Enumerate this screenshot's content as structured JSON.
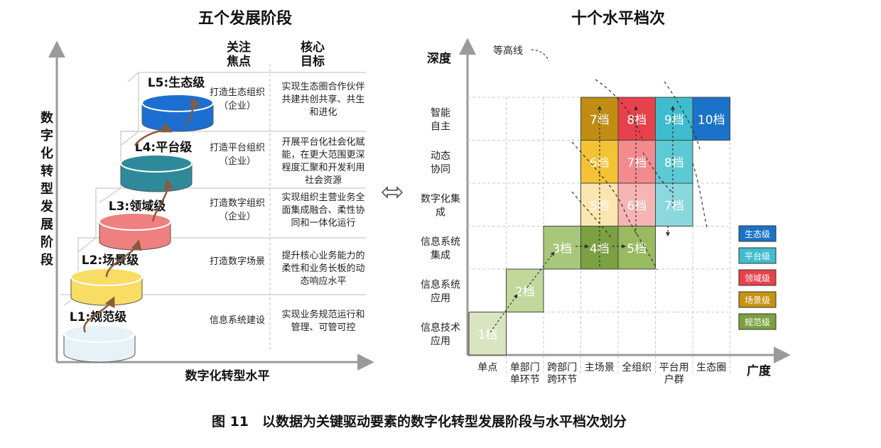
{
  "left": {
    "title": "五个发展阶段",
    "y_axis_label": "数字化转型发展阶段",
    "x_axis_label": "数字化转型水平",
    "col_headers": {
      "focus": "关注焦点",
      "goal": "核心目标"
    },
    "stages": [
      {
        "level": "L1:规范级",
        "focus": "信息系统建设",
        "goal": "实现业务规范运行和管理、可管可控",
        "color": "#e6f2f8"
      },
      {
        "level": "L2:场景级",
        "focus": "打造数字场景",
        "goal": "提升核心业务能力的柔性和业务长板的动态响应水平",
        "color": "#f9dc63"
      },
      {
        "level": "L3:领域级",
        "focus": "打造数字组织（企业）",
        "goal": "实现组织主营业务全面集成融合、柔性协同和一体化运行",
        "color": "#ef8080"
      },
      {
        "level": "L4:平台级",
        "focus": "打造平台组织（企业）",
        "goal": "开展平台化社会化赋能，在更大范围更深程度汇聚和开发利用社会资源",
        "color": "#2e8a9a"
      },
      {
        "level": "L5:生态级",
        "focus": "打造生态组织（企业）",
        "goal": "实现生态圈合作伙伴共建共创共享、共生和进化",
        "color": "#1c6fd1"
      }
    ]
  },
  "swap_icon": "double-arrow-icon",
  "right": {
    "title": "十个水平档次",
    "y_axis_label": "深度",
    "x_axis_label": "广度",
    "contour_label": "等高线",
    "rows": [
      "信息技术应用",
      "信息系统应用",
      "信息系统集成",
      "数字化集成",
      "动态协同",
      "智能自主"
    ],
    "cols": [
      "单点",
      "单部门单环节",
      "跨部门跨环节",
      "主场景",
      "全组织",
      "平台用户群",
      "生态圈"
    ],
    "legend": [
      {
        "label": "生态级",
        "color": "#1a73c9"
      },
      {
        "label": "平台级",
        "color": "#3fbccd"
      },
      {
        "label": "领域级",
        "color": "#e8414b"
      },
      {
        "label": "场景级",
        "color": "#c69210"
      },
      {
        "label": "规范级",
        "color": "#7ba141"
      }
    ],
    "cells": [
      {
        "label": "1档",
        "row": 0,
        "col": 0,
        "color": "#d9e5c0"
      },
      {
        "label": "2档",
        "row": 1,
        "col": 1,
        "color": "#c2d79c"
      },
      {
        "label": "3档",
        "row": 2,
        "col": 2,
        "color": "#a9c77a"
      },
      {
        "label": "4档",
        "row": 2,
        "col": 3,
        "color": "#7ba141"
      },
      {
        "label": "5档",
        "row": 2,
        "col": 4,
        "color": "#98ba60"
      },
      {
        "label": "5档",
        "row": 3,
        "col": 3,
        "color": "#fbe6b0"
      },
      {
        "label": "6档",
        "row": 3,
        "col": 4,
        "color": "#f7b4b4"
      },
      {
        "label": "7档",
        "row": 3,
        "col": 5,
        "color": "#8ad8de"
      },
      {
        "label": "6档",
        "row": 4,
        "col": 3,
        "color": "#f4c233"
      },
      {
        "label": "7档",
        "row": 4,
        "col": 4,
        "color": "#f38a8e"
      },
      {
        "label": "8档",
        "row": 4,
        "col": 5,
        "color": "#5ccad4"
      },
      {
        "label": "7档",
        "row": 5,
        "col": 3,
        "color": "#c08d12"
      },
      {
        "label": "8档",
        "row": 5,
        "col": 4,
        "color": "#e8414b"
      },
      {
        "label": "9档",
        "row": 5,
        "col": 5,
        "color": "#3fbccd"
      },
      {
        "label": "10档",
        "row": 5,
        "col": 6,
        "color": "#1a73c9"
      }
    ]
  },
  "caption": "图 11　以数据为关键驱动要素的数字化转型发展阶段与水平档次划分"
}
